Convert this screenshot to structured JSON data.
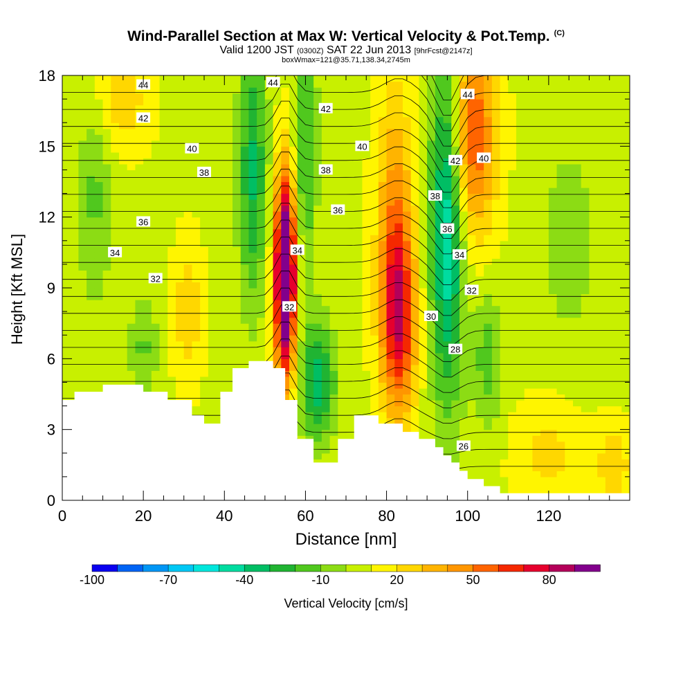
{
  "title": "Wind-Parallel Section at Max W: Vertical Velocity & Pot.Temp.",
  "title_mark": "(C)",
  "subtitle_prefix": "Valid 1200 JST",
  "subtitle_utc": "(0300Z)",
  "subtitle_date": "SAT 22 Jun 2013",
  "subtitle_fcst": "[9hrFcst@2147z]",
  "subtitle2": "boxWmax=121@35.71,138.34,2745m",
  "chart_data": {
    "type": "heatmap",
    "xlabel": "Distance [nm]",
    "ylabel": "Height [Kft MSL]",
    "xlim": [
      0,
      140
    ],
    "ylim": [
      0,
      18
    ],
    "x_ticks": [
      "0",
      "20",
      "40",
      "60",
      "80",
      "100",
      "120"
    ],
    "y_ticks": [
      "0",
      "3",
      "6",
      "9",
      "12",
      "15",
      "18"
    ],
    "colorbar": {
      "label": "Vertical Velocity [cm/s]",
      "tick_labels": [
        "-100",
        "-70",
        "-40",
        "-10",
        "20",
        "50",
        "80"
      ],
      "levels": [
        -100,
        -90,
        -80,
        -70,
        -60,
        -50,
        -40,
        -30,
        -20,
        -10,
        0,
        10,
        20,
        30,
        40,
        50,
        60,
        70,
        80,
        90,
        100
      ],
      "colors": [
        "#0a00f0",
        "#0064f5",
        "#0096f5",
        "#00c8f5",
        "#00e6dc",
        "#00dca0",
        "#00be64",
        "#20b432",
        "#50c81e",
        "#8cdc14",
        "#c8f000",
        "#fff500",
        "#ffd700",
        "#ffb400",
        "#ff9600",
        "#ff6400",
        "#f52800",
        "#e6002d",
        "#b4005a",
        "#82008c"
      ]
    },
    "terrain_kft": [
      [
        0,
        4.25
      ],
      [
        3,
        4.25
      ],
      [
        3,
        4.6
      ],
      [
        10,
        4.6
      ],
      [
        10,
        4.9
      ],
      [
        20,
        4.9
      ],
      [
        20,
        4.6
      ],
      [
        26,
        4.6
      ],
      [
        26,
        4.25
      ],
      [
        32,
        4.25
      ],
      [
        32,
        3.6
      ],
      [
        35,
        3.6
      ],
      [
        35,
        3.25
      ],
      [
        39,
        3.25
      ],
      [
        39,
        4.6
      ],
      [
        42,
        4.6
      ],
      [
        42,
        5.6
      ],
      [
        46,
        5.6
      ],
      [
        46,
        5.9
      ],
      [
        52,
        5.9
      ],
      [
        52,
        5.6
      ],
      [
        55,
        5.6
      ],
      [
        55,
        4.25
      ],
      [
        58,
        4.25
      ],
      [
        58,
        2.6
      ],
      [
        62,
        2.6
      ],
      [
        62,
        1.6
      ],
      [
        68,
        1.6
      ],
      [
        68,
        2.6
      ],
      [
        72,
        2.6
      ],
      [
        72,
        3.6
      ],
      [
        78,
        3.6
      ],
      [
        78,
        3.25
      ],
      [
        84,
        3.25
      ],
      [
        84,
        2.9
      ],
      [
        88,
        2.9
      ],
      [
        88,
        2.6
      ],
      [
        92,
        2.6
      ],
      [
        92,
        2.25
      ],
      [
        94,
        2.25
      ],
      [
        94,
        1.9
      ],
      [
        96,
        1.9
      ],
      [
        96,
        1.6
      ],
      [
        98,
        1.6
      ],
      [
        98,
        1.25
      ],
      [
        100,
        1.25
      ],
      [
        100,
        0.9
      ],
      [
        104,
        0.9
      ],
      [
        104,
        0.6
      ],
      [
        108,
        0.6
      ],
      [
        108,
        0.3
      ],
      [
        140,
        0.3
      ]
    ],
    "w_features": [
      {
        "x": 55,
        "y": 9.5,
        "sx": 1.8,
        "sy": 3.0,
        "w": 125
      },
      {
        "x": 83,
        "y": 7.5,
        "sx": 3.0,
        "sy": 2.8,
        "w": 60
      },
      {
        "x": 82,
        "y": 12.0,
        "sx": 3.0,
        "sy": 4.0,
        "w": 35
      },
      {
        "x": 101,
        "y": 15.5,
        "sx": 4.0,
        "sy": 3.0,
        "w": 55
      },
      {
        "x": 63,
        "y": 5.0,
        "sx": 3.0,
        "sy": 1.8,
        "w": -45
      },
      {
        "x": 47,
        "y": 14.0,
        "sx": 2.5,
        "sy": 4.0,
        "w": -40
      },
      {
        "x": 60,
        "y": 15.0,
        "sx": 2.0,
        "sy": 4.0,
        "w": -30
      },
      {
        "x": 95,
        "y": 12.0,
        "sx": 3.0,
        "sy": 5.5,
        "w": -60
      },
      {
        "x": 105,
        "y": 6.0,
        "sx": 2.5,
        "sy": 2.0,
        "w": -25
      },
      {
        "x": 8,
        "y": 13.0,
        "sx": 3.0,
        "sy": 3.5,
        "w": -20
      },
      {
        "x": 20,
        "y": 6.5,
        "sx": 2.5,
        "sy": 1.5,
        "w": -20
      },
      {
        "x": 31,
        "y": 8.0,
        "sx": 2.5,
        "sy": 2.0,
        "w": 20
      },
      {
        "x": 125,
        "y": 11.0,
        "sx": 5.0,
        "sy": 3.0,
        "w": -15
      },
      {
        "x": 14,
        "y": 17.0,
        "sx": 5.0,
        "sy": 1.5,
        "w": 20
      },
      {
        "x": 120,
        "y": 2.0,
        "sx": 6.0,
        "sy": 1.5,
        "w": 15
      },
      {
        "x": 136,
        "y": 1.5,
        "sx": 3.0,
        "sy": 1.2,
        "w": 20
      }
    ],
    "theta_labels": [
      {
        "text": "44",
        "x": 20,
        "y": 17.6
      },
      {
        "text": "42",
        "x": 20,
        "y": 16.2
      },
      {
        "text": "40",
        "x": 32,
        "y": 14.9
      },
      {
        "text": "38",
        "x": 35,
        "y": 13.9
      },
      {
        "text": "36",
        "x": 20,
        "y": 11.8
      },
      {
        "text": "34",
        "x": 13,
        "y": 10.5
      },
      {
        "text": "32",
        "x": 23,
        "y": 9.4
      },
      {
        "text": "44",
        "x": 52,
        "y": 17.7
      },
      {
        "text": "42",
        "x": 65,
        "y": 16.6
      },
      {
        "text": "40",
        "x": 74,
        "y": 15.0
      },
      {
        "text": "38",
        "x": 65,
        "y": 14.0
      },
      {
        "text": "36",
        "x": 68,
        "y": 12.3
      },
      {
        "text": "34",
        "x": 58,
        "y": 10.6
      },
      {
        "text": "32",
        "x": 56,
        "y": 8.2
      },
      {
        "text": "44",
        "x": 100,
        "y": 17.2
      },
      {
        "text": "42",
        "x": 97,
        "y": 14.4
      },
      {
        "text": "40",
        "x": 104,
        "y": 14.5
      },
      {
        "text": "38",
        "x": 92,
        "y": 12.9
      },
      {
        "text": "36",
        "x": 95,
        "y": 11.5
      },
      {
        "text": "34",
        "x": 98,
        "y": 10.4
      },
      {
        "text": "32",
        "x": 101,
        "y": 8.9
      },
      {
        "text": "30",
        "x": 91,
        "y": 7.8
      },
      {
        "text": "28",
        "x": 97,
        "y": 6.4
      },
      {
        "text": "26",
        "x": 99,
        "y": 2.3
      }
    ]
  }
}
